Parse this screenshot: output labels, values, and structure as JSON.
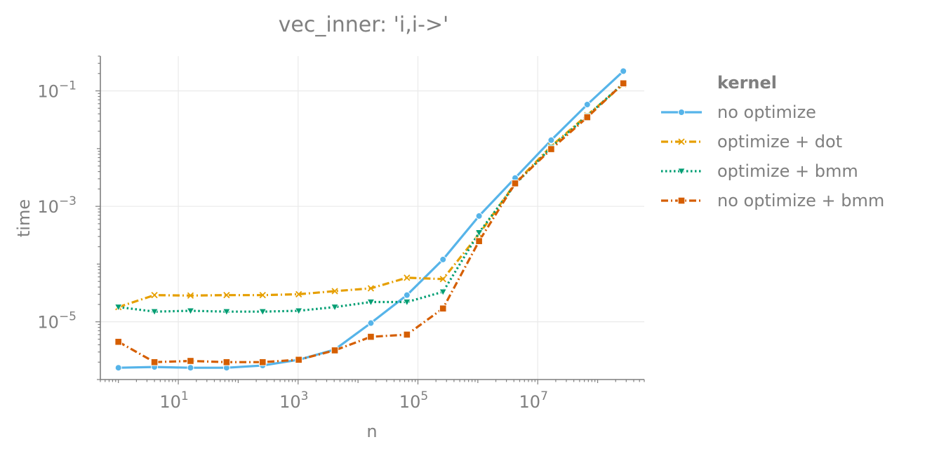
{
  "chart_data": {
    "type": "line",
    "title": "vec_inner: 'i,i->'",
    "xlabel": "n",
    "ylabel": "time",
    "xscale": "log",
    "yscale": "log",
    "xlim": [
      0.5,
      600000000
    ],
    "ylim": [
      1e-06,
      0.4
    ],
    "x_ticks": [
      {
        "value": 10,
        "base": "10",
        "exp": "1"
      },
      {
        "value": 1000,
        "base": "10",
        "exp": "3"
      },
      {
        "value": 100000,
        "base": "10",
        "exp": "5"
      },
      {
        "value": 10000000,
        "base": "10",
        "exp": "7"
      }
    ],
    "y_ticks": [
      {
        "value": 1e-05,
        "base": "10",
        "exp": "−5"
      },
      {
        "value": 0.001,
        "base": "10",
        "exp": "−3"
      },
      {
        "value": 0.1,
        "base": "10",
        "exp": "−1"
      }
    ],
    "grid": true,
    "legend": {
      "title": "kernel",
      "position": "right"
    },
    "x": [
      1,
      4,
      16,
      64,
      256,
      1024,
      4096,
      16384,
      65536,
      262144,
      1048576,
      4194304,
      16777216,
      67108864,
      268435456
    ],
    "series": [
      {
        "name": "no optimize",
        "color": "#56b4e9",
        "dash": "solid",
        "marker": "circle",
        "values": [
          1.6e-06,
          1.65e-06,
          1.6e-06,
          1.6e-06,
          1.75e-06,
          2.2e-06,
          3.3e-06,
          9.5e-06,
          2.9e-05,
          0.00012,
          0.00068,
          0.0031,
          0.014,
          0.058,
          0.22
        ]
      },
      {
        "name": "optimize + dot",
        "color": "#e69f00",
        "dash": "dashdot",
        "marker": "x",
        "values": [
          1.8e-05,
          2.9e-05,
          2.85e-05,
          2.9e-05,
          2.9e-05,
          3e-05,
          3.4e-05,
          3.8e-05,
          5.8e-05,
          5.5e-05,
          0.00033,
          0.0025,
          0.011,
          0.038,
          0.13
        ]
      },
      {
        "name": "optimize + bmm",
        "color": "#009e73",
        "dash": "dotted",
        "marker": "triangle-down",
        "values": [
          1.8e-05,
          1.5e-05,
          1.55e-05,
          1.5e-05,
          1.5e-05,
          1.55e-05,
          1.8e-05,
          2.2e-05,
          2.2e-05,
          3.3e-05,
          0.00035,
          0.0024,
          0.0105,
          0.037,
          0.135
        ]
      },
      {
        "name": "no optimize + bmm",
        "color": "#d55e00",
        "dash": "dashdot",
        "marker": "square",
        "values": [
          4.5e-06,
          2e-06,
          2.1e-06,
          2e-06,
          2e-06,
          2.2e-06,
          3.2e-06,
          5.5e-06,
          6e-06,
          1.7e-05,
          0.00025,
          0.0025,
          0.0098,
          0.035,
          0.135
        ]
      }
    ]
  }
}
